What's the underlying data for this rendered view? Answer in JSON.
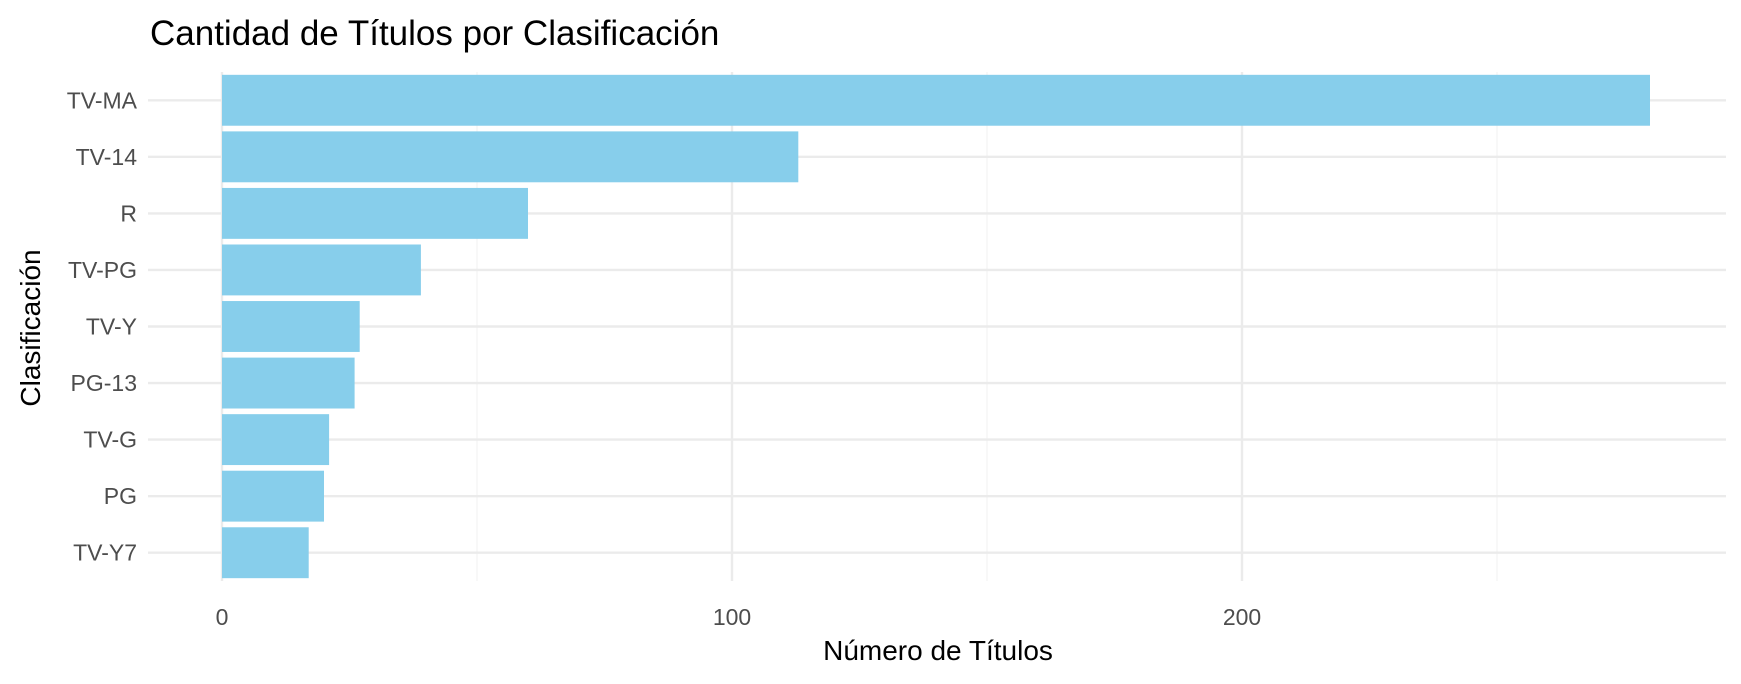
{
  "chart_data": {
    "type": "bar",
    "orientation": "horizontal",
    "title": "Cantidad de Títulos por Clasificación",
    "xlabel": "Número de Títulos",
    "ylabel": "Clasificación",
    "categories": [
      "TV-MA",
      "TV-14",
      "R",
      "TV-PG",
      "TV-Y",
      "PG-13",
      "TV-G",
      "PG",
      "TV-Y7"
    ],
    "values": [
      280,
      113,
      60,
      39,
      27,
      26,
      21,
      20,
      17
    ],
    "xlim": [
      -14,
      291
    ],
    "x_ticks": [
      0,
      100,
      200
    ],
    "x_tick_labels": [
      "0",
      "100",
      "200"
    ],
    "grid": true,
    "legend": "none",
    "colors": {
      "bar": "#87ceeb",
      "grid": "#ebebeb",
      "tick_text": "#4d4d4d",
      "text": "#000000"
    }
  }
}
